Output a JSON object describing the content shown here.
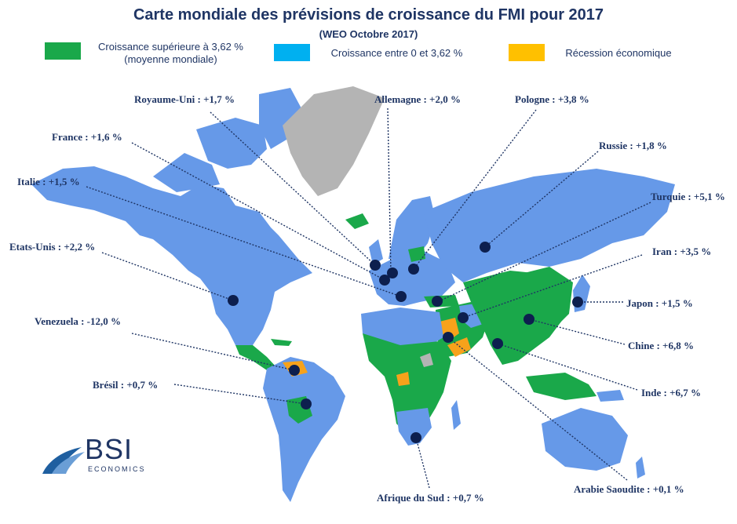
{
  "title": "Carte mondiale des prévisions de croissance du FMI pour 2017",
  "subtitle": "(WEO Octobre 2017)",
  "legend": [
    {
      "label_line1": "Croissance supérieure à 3,62 %",
      "label_line2": "(moyenne mondiale)",
      "color": "#1aa84a"
    },
    {
      "label_line1": "Croissance entre 0 et 3,62 %",
      "label_line2": "",
      "color": "#00b0f0"
    },
    {
      "label_line1": "Récession économique",
      "label_line2": "",
      "color": "#ffc000"
    }
  ],
  "colors": {
    "low_growth_land": "#6699e8",
    "high_growth_land": "#1aa84a",
    "recession_land": "#f7a21b",
    "no_data_land": "#b4b4b4",
    "marker": "#0d1f4e",
    "text": "#1f3564"
  },
  "countries": [
    {
      "label": "Royaume-Uni : +1,7 %",
      "growth_pct": 1.7
    },
    {
      "label": "Allemagne : +2,0 %",
      "growth_pct": 2.0
    },
    {
      "label": "Pologne : +3,8 %",
      "growth_pct": 3.8
    },
    {
      "label": "France : +1,6 %",
      "growth_pct": 1.6
    },
    {
      "label": "Russie : +1,8 %",
      "growth_pct": 1.8
    },
    {
      "label": "Italie : +1,5 %",
      "growth_pct": 1.5
    },
    {
      "label": "Turquie : +5,1 %",
      "growth_pct": 5.1
    },
    {
      "label": "Etats-Unis : +2,2 %",
      "growth_pct": 2.2
    },
    {
      "label": "Iran : +3,5 %",
      "growth_pct": 3.5
    },
    {
      "label": "Japon : +1,5 %",
      "growth_pct": 1.5
    },
    {
      "label": "Venezuela : -12,0 %",
      "growth_pct": -12.0
    },
    {
      "label": "Chine : +6,8 %",
      "growth_pct": 6.8
    },
    {
      "label": "Brésil : +0,7 %",
      "growth_pct": 0.7
    },
    {
      "label": "Inde : +6,7 %",
      "growth_pct": 6.7
    },
    {
      "label": "Afrique du Sud : +0,7 %",
      "growth_pct": 0.7
    },
    {
      "label": "Arabie Saoudite : +0,1 %",
      "growth_pct": 0.1
    }
  ],
  "logo": {
    "name": "BSI",
    "sub": "ECONOMICS"
  }
}
